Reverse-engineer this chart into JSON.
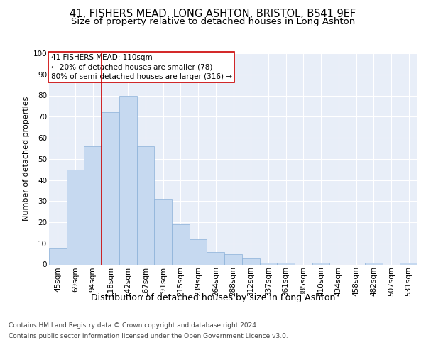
{
  "title1": "41, FISHERS MEAD, LONG ASHTON, BRISTOL, BS41 9EF",
  "title2": "Size of property relative to detached houses in Long Ashton",
  "xlabel": "Distribution of detached houses by size in Long Ashton",
  "ylabel": "Number of detached properties",
  "categories": [
    "45sqm",
    "69sqm",
    "94sqm",
    "118sqm",
    "142sqm",
    "167sqm",
    "191sqm",
    "215sqm",
    "239sqm",
    "264sqm",
    "288sqm",
    "312sqm",
    "337sqm",
    "361sqm",
    "385sqm",
    "410sqm",
    "434sqm",
    "458sqm",
    "482sqm",
    "507sqm",
    "531sqm"
  ],
  "values": [
    8,
    45,
    56,
    72,
    80,
    56,
    31,
    19,
    12,
    6,
    5,
    3,
    1,
    1,
    0,
    1,
    0,
    0,
    1,
    0,
    1
  ],
  "bar_color": "#c6d9f0",
  "bar_edge_color": "#8ab0d8",
  "vline_color": "#cc0000",
  "annotation_box_text": "41 FISHERS MEAD: 110sqm\n← 20% of detached houses are smaller (78)\n80% of semi-detached houses are larger (316) →",
  "annotation_box_color": "#cc0000",
  "ylim": [
    0,
    100
  ],
  "yticks": [
    0,
    10,
    20,
    30,
    40,
    50,
    60,
    70,
    80,
    90,
    100
  ],
  "footer1": "Contains HM Land Registry data © Crown copyright and database right 2024.",
  "footer2": "Contains public sector information licensed under the Open Government Licence v3.0.",
  "plot_bg_color": "#e8eef8",
  "title1_fontsize": 10.5,
  "title2_fontsize": 9.5,
  "xlabel_fontsize": 9,
  "ylabel_fontsize": 8,
  "tick_fontsize": 7.5,
  "footer_fontsize": 6.5,
  "ann_fontsize": 7.5
}
